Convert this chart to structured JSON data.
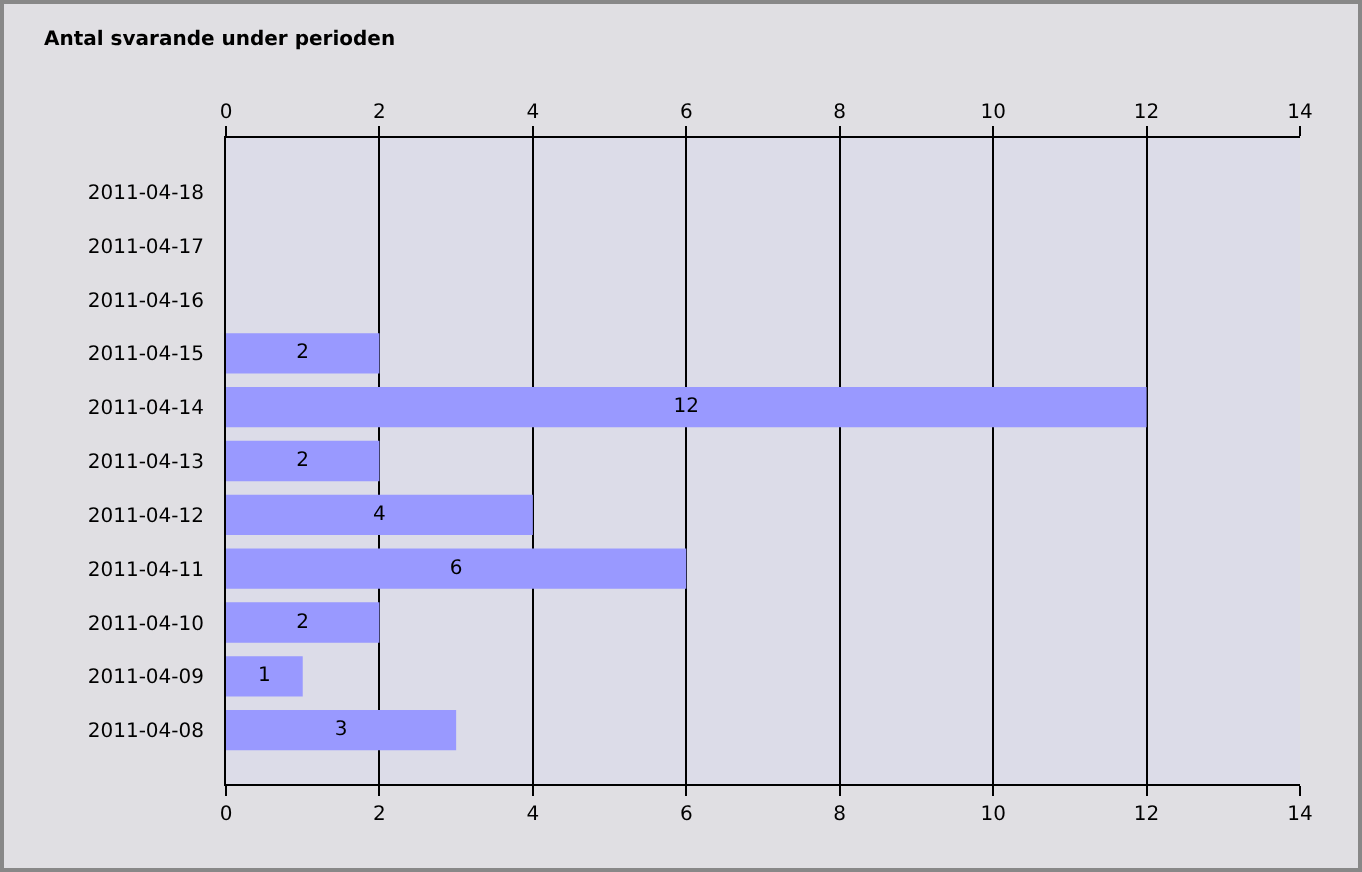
{
  "chart_data": {
    "type": "bar",
    "orientation": "horizontal",
    "title": "Antal svarande under perioden",
    "categories": [
      "2011-04-18",
      "2011-04-17",
      "2011-04-16",
      "2011-04-15",
      "2011-04-14",
      "2011-04-13",
      "2011-04-12",
      "2011-04-11",
      "2011-04-10",
      "2011-04-09",
      "2011-04-08"
    ],
    "values": [
      null,
      null,
      null,
      2,
      12,
      2,
      4,
      6,
      2,
      1,
      3
    ],
    "color": "#9999ff",
    "xlim": [
      0,
      14
    ],
    "xticks": [
      0,
      2,
      4,
      6,
      8,
      10,
      12,
      14
    ],
    "x2lim": [
      0,
      14
    ],
    "x2ticks": [
      0,
      2,
      4,
      6,
      8,
      10,
      12,
      14
    ],
    "grid": "x",
    "data_labels": true
  }
}
